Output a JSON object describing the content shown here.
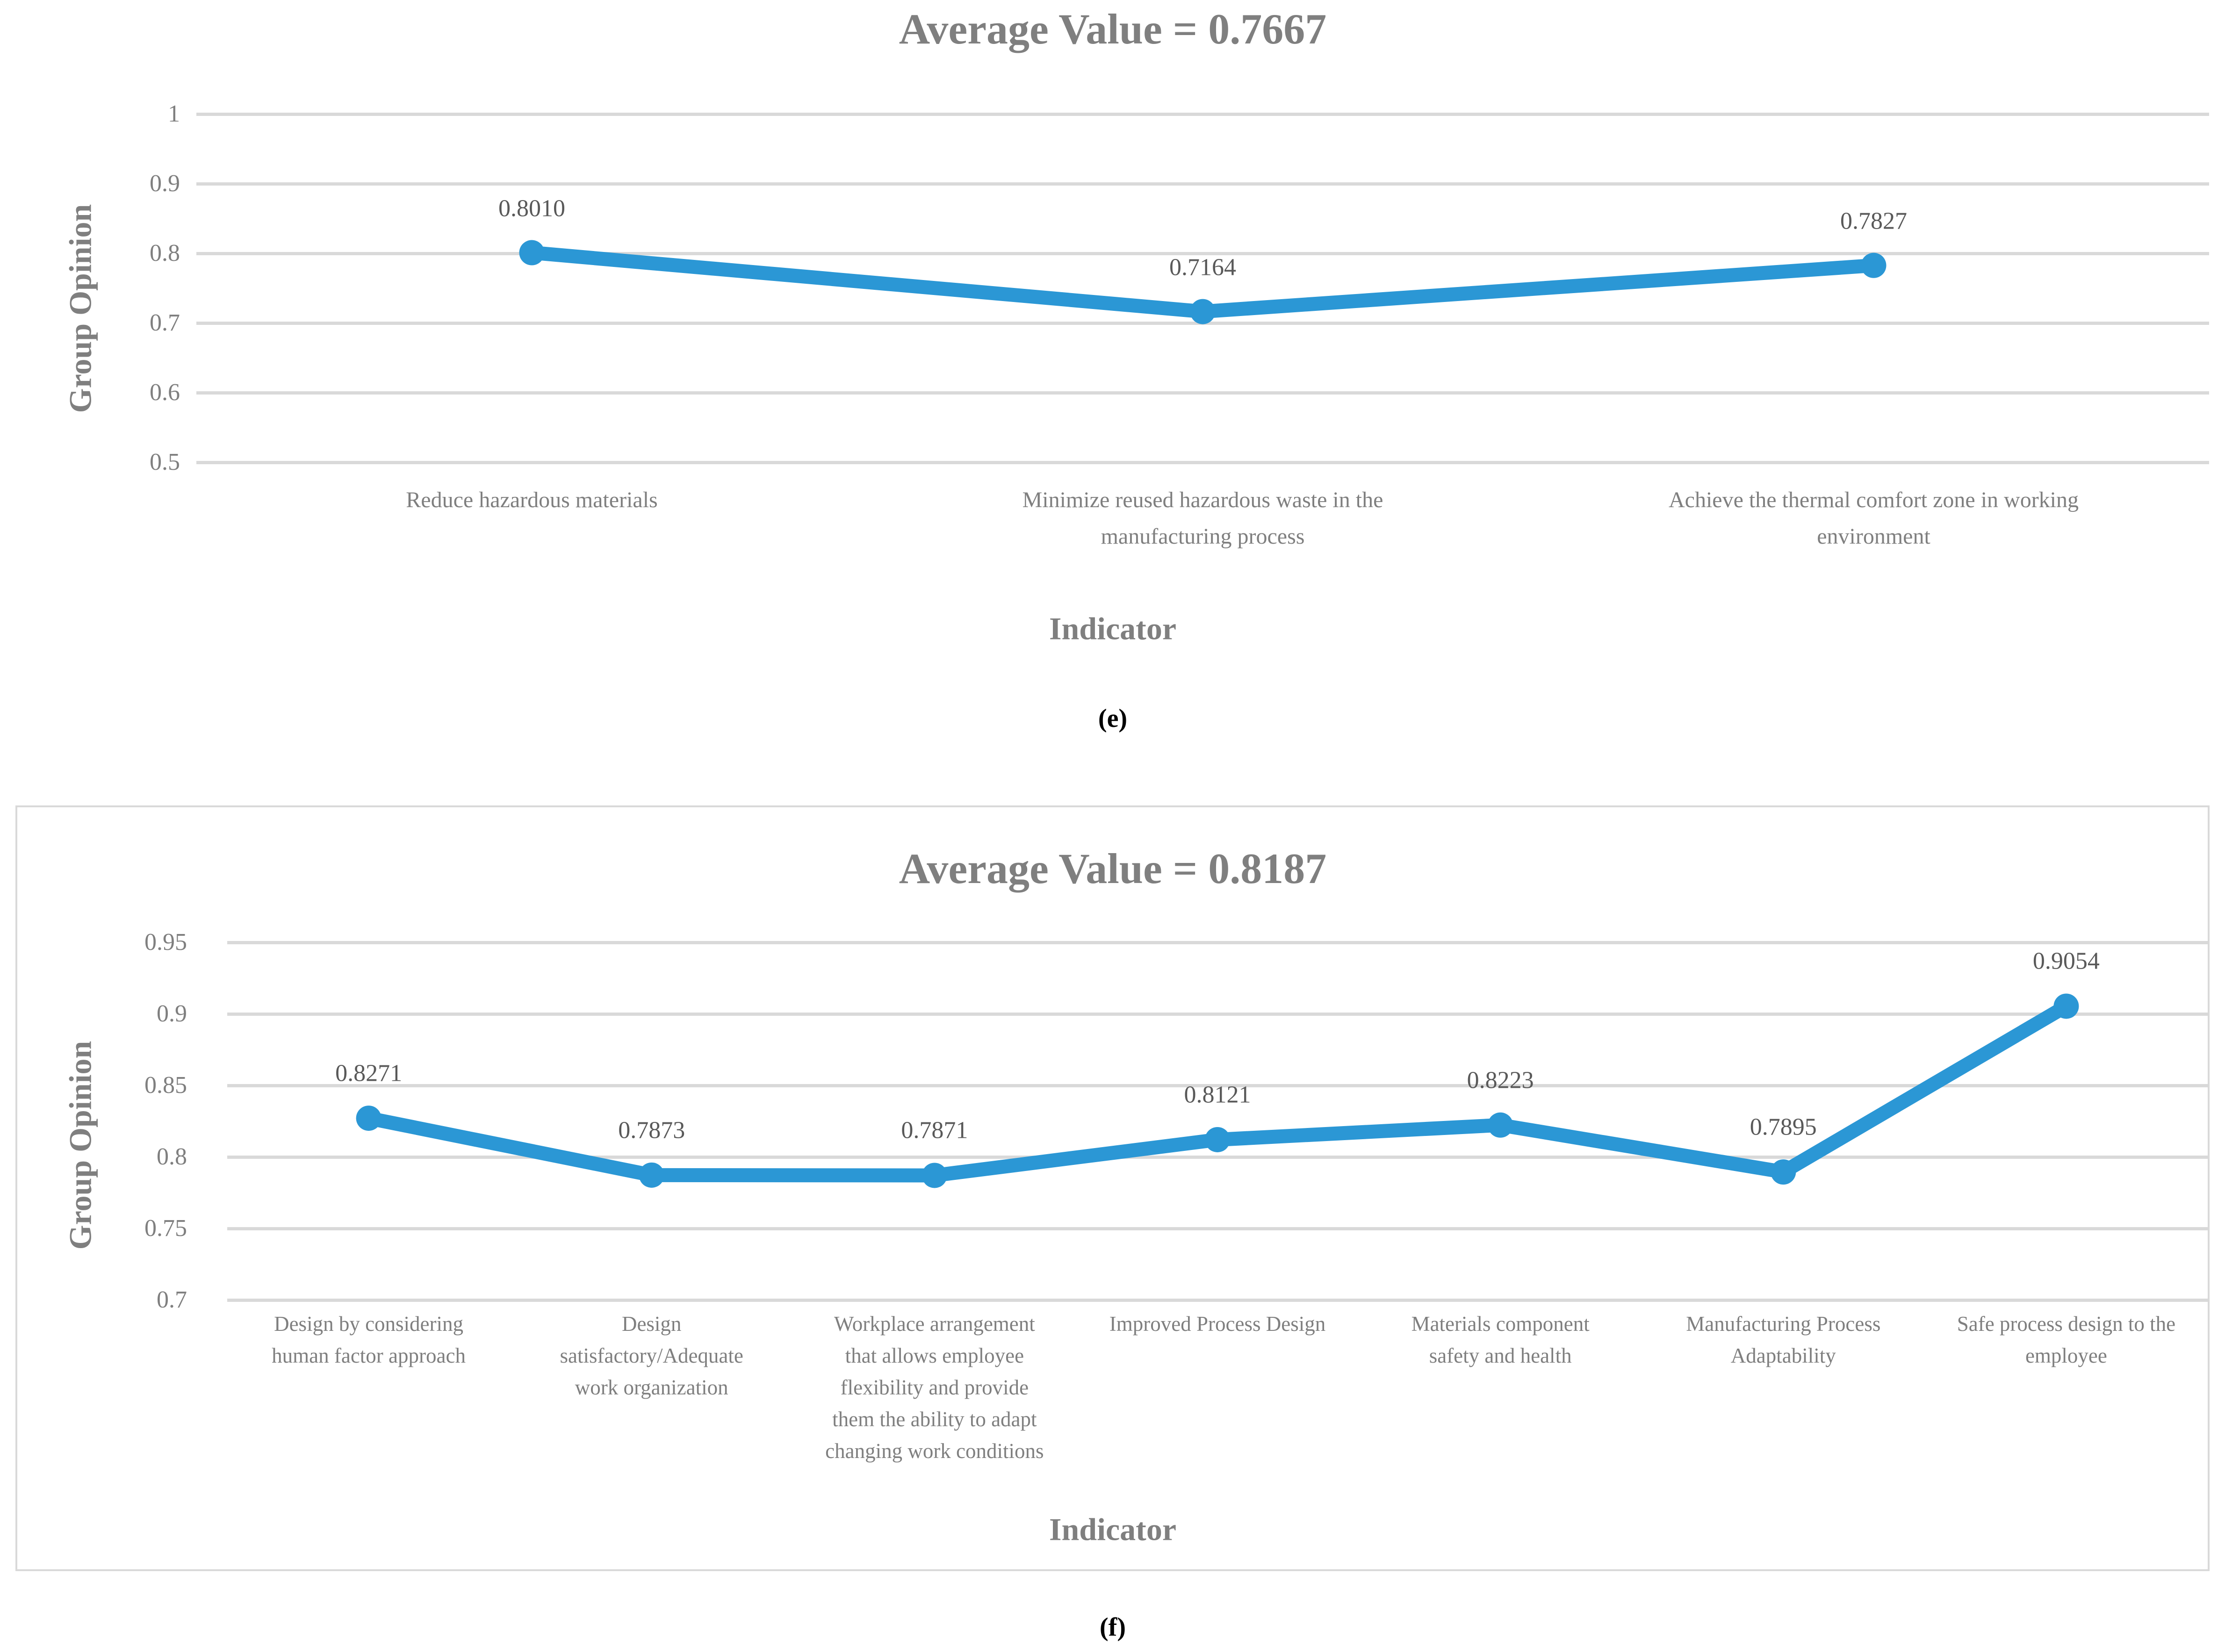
{
  "colors": {
    "line": "#2B97D5",
    "title": "#7F7F7F",
    "axis_title": "#7F7F7F",
    "tick": "#7F7F7F",
    "category": "#7F7F7F",
    "data_label": "#595959",
    "grid": "#D9D9D9",
    "frame": "#D9D9D9",
    "panel_letter": "#000000",
    "background": "#FFFFFF"
  },
  "chart_data": [
    {
      "type": "line",
      "title": "Average Value = 0.7667",
      "xlabel": "Indicator",
      "ylabel": "Group Opinion",
      "panel_label": "(e)",
      "legend": "none",
      "grid": true,
      "framed": false,
      "ylim": [
        0.5,
        1.0
      ],
      "ytick_values": [
        1,
        0.9,
        0.8,
        0.7,
        0.6,
        0.5
      ],
      "ytick_labels": [
        "1",
        "0.9",
        "0.8",
        "0.7",
        "0.6",
        "0.5"
      ],
      "categories": [
        "Reduce hazardous materials",
        "Minimize reused hazardous waste in the manufacturing process",
        "Achieve the thermal comfort zone in working environment"
      ],
      "category_lines": [
        [
          "Reduce hazardous materials"
        ],
        [
          "Minimize reused hazardous waste in the",
          "manufacturing process"
        ],
        [
          "Achieve the thermal comfort zone in working",
          "environment"
        ]
      ],
      "values": [
        0.801,
        0.7164,
        0.7827
      ],
      "value_labels": [
        "0.8010",
        "0.7164",
        "0.7827"
      ],
      "line_color": "#2B97D5",
      "marker": "circle"
    },
    {
      "type": "line",
      "title": "Average Value = 0.8187",
      "xlabel": "Indicator",
      "ylabel": "Group Opinion",
      "panel_label": "(f)",
      "legend": "none",
      "grid": true,
      "framed": true,
      "ylim": [
        0.7,
        0.95
      ],
      "ytick_values": [
        0.95,
        0.9,
        0.85,
        0.8,
        0.75,
        0.7
      ],
      "ytick_labels": [
        "0.95",
        "0.9",
        "0.85",
        "0.8",
        "0.75",
        "0.7"
      ],
      "categories": [
        "Design by considering human factor approach",
        "Design satisfactory/Adequate work organization",
        "Workplace arrangement that allows employee flexibility and provide them the ability to adapt changing work conditions",
        "Improved Process Design",
        "Materials component safety and health",
        "Manufacturing Process Adaptability",
        "Safe process design to the employee"
      ],
      "category_lines": [
        [
          "Design by considering",
          "human factor approach"
        ],
        [
          "Design",
          "satisfactory/Adequate",
          "work organization"
        ],
        [
          "Workplace arrangement",
          "that allows employee",
          "flexibility and provide",
          "them the ability to adapt",
          "changing work conditions"
        ],
        [
          "Improved Process Design"
        ],
        [
          "Materials component",
          "safety and health"
        ],
        [
          "Manufacturing Process",
          "Adaptability"
        ],
        [
          "Safe process design to the",
          "employee"
        ]
      ],
      "values": [
        0.8271,
        0.7873,
        0.7871,
        0.8121,
        0.8223,
        0.7895,
        0.9054
      ],
      "value_labels": [
        "0.8271",
        "0.7873",
        "0.7871",
        "0.8121",
        "0.8223",
        "0.7895",
        "0.9054"
      ],
      "line_color": "#2B97D5",
      "marker": "circle"
    }
  ]
}
